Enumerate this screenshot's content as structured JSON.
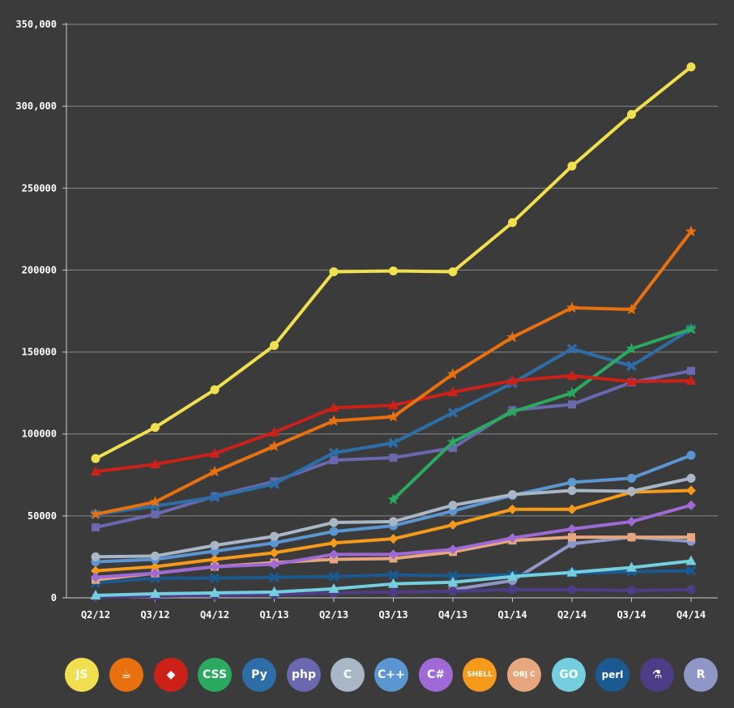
{
  "chart_data": {
    "type": "line",
    "title": "",
    "xlabel": "",
    "ylabel": "",
    "ylim": [
      0,
      350000
    ],
    "yticks": [
      0,
      50000,
      100000,
      150000,
      200000,
      250000,
      300000,
      350000
    ],
    "ytick_labels": [
      "0",
      "50000",
      "100000",
      "150000",
      "200000",
      "250000",
      "300,000",
      "350,000"
    ],
    "categories": [
      "Q2/12",
      "Q3/12",
      "Q4/12",
      "Q1/13",
      "Q2/13",
      "Q3/13",
      "Q4/13",
      "Q1/14",
      "Q2/14",
      "Q3/14",
      "Q4/14"
    ],
    "grid": true,
    "legend": "bottom",
    "series": [
      {
        "name": "JavaScript",
        "color": "#f0df4e",
        "marker": "circle",
        "values": [
          85000,
          104000,
          127000,
          154000,
          199000,
          199500,
          199000,
          229000,
          263500,
          295000,
          324000
        ]
      },
      {
        "name": "Java",
        "color": "#e8700f",
        "marker": "star",
        "values": [
          51000,
          58500,
          77000,
          92500,
          108000,
          110500,
          136500,
          159000,
          177000,
          176000,
          223500
        ]
      },
      {
        "name": "Ruby",
        "color": "#cc2119",
        "marker": "triangle",
        "values": [
          77000,
          81500,
          88000,
          101000,
          116000,
          117500,
          125500,
          132500,
          135500,
          132000,
          132500
        ]
      },
      {
        "name": "CSS",
        "color": "#2aaa5e",
        "marker": "star",
        "values": [
          null,
          null,
          null,
          null,
          null,
          60000,
          95000,
          113500,
          125000,
          152000,
          164000
        ]
      },
      {
        "name": "Python",
        "color": "#2e6ea8",
        "marker": "x",
        "values": [
          51000,
          56000,
          61500,
          69500,
          88500,
          94500,
          113000,
          131000,
          152000,
          141500,
          164000
        ]
      },
      {
        "name": "PHP",
        "color": "#6a68ae",
        "marker": "square",
        "values": [
          43000,
          51000,
          62000,
          71000,
          84000,
          85500,
          91500,
          114500,
          118000,
          131500,
          138500
        ]
      },
      {
        "name": "C",
        "color": "#a9b6c6",
        "marker": "circle",
        "values": [
          25000,
          25500,
          32000,
          37500,
          46000,
          46500,
          56500,
          63000,
          65500,
          65000,
          73000
        ]
      },
      {
        "name": "C++",
        "color": "#5b96d0",
        "marker": "circle",
        "values": [
          22000,
          23500,
          28500,
          33500,
          40500,
          44000,
          53000,
          62500,
          70500,
          73000,
          87000
        ]
      },
      {
        "name": "C#",
        "color": "#a06ad6",
        "marker": "diamond",
        "values": [
          12500,
          15000,
          19000,
          20500,
          26500,
          26500,
          29500,
          36500,
          42000,
          46500,
          56500
        ]
      },
      {
        "name": "Shell",
        "color": "#f59a1a",
        "marker": "diamond",
        "values": [
          16500,
          19000,
          23500,
          27500,
          33500,
          36000,
          44500,
          54000,
          54000,
          64500,
          65500
        ]
      },
      {
        "name": "Objective-C",
        "color": "#e6a67e",
        "marker": "square",
        "values": [
          11000,
          15000,
          19000,
          21500,
          23500,
          24000,
          28000,
          35000,
          37000,
          37000,
          37000
        ]
      },
      {
        "name": "Go",
        "color": "#74cede",
        "marker": "triangle",
        "values": [
          1500,
          2500,
          3000,
          3500,
          5500,
          8500,
          9500,
          13000,
          15500,
          18500,
          22500
        ]
      },
      {
        "name": "Perl",
        "color": "#1b5a90",
        "marker": "x",
        "values": [
          9000,
          12000,
          12000,
          12500,
          13000,
          14000,
          13500,
          14000,
          15000,
          16000,
          16500
        ]
      },
      {
        "name": "Scala",
        "color": "#4f3c86",
        "marker": "circle",
        "values": [
          500,
          1000,
          1500,
          2000,
          3000,
          3500,
          4000,
          5000,
          5000,
          4500,
          5000
        ]
      },
      {
        "name": "R",
        "color": "#8f97c7",
        "marker": "circle",
        "values": [
          null,
          null,
          null,
          null,
          null,
          null,
          5000,
          10500,
          33000,
          37000,
          34500
        ]
      }
    ]
  },
  "legend": {
    "items": [
      {
        "label": "JS",
        "icon": "js-icon",
        "color": "#f0df4e",
        "text_color": "#ffffff"
      },
      {
        "label": "☕",
        "icon": "java-icon",
        "color": "#e8700f",
        "text_color": "#ffffff"
      },
      {
        "label": "◆",
        "icon": "ruby-icon",
        "color": "#cc2119",
        "text_color": "#ffffff"
      },
      {
        "label": "CSS",
        "icon": "css-icon",
        "color": "#2aaa5e",
        "text_color": "#ffffff"
      },
      {
        "label": "Py",
        "icon": "python-icon",
        "color": "#2e6ea8",
        "text_color": "#ffffff"
      },
      {
        "label": "php",
        "icon": "php-icon",
        "color": "#6a68ae",
        "text_color": "#ffffff"
      },
      {
        "label": "C",
        "icon": "c-icon",
        "color": "#a9b6c6",
        "text_color": "#ffffff"
      },
      {
        "label": "C++",
        "icon": "cpp-icon",
        "color": "#5b96d0",
        "text_color": "#ffffff"
      },
      {
        "label": "C#",
        "icon": "csharp-icon",
        "color": "#a06ad6",
        "text_color": "#ffffff"
      },
      {
        "label": "SHELL",
        "icon": "shell-icon",
        "color": "#f59a1a",
        "text_color": "#ffffff"
      },
      {
        "label": "OBJ C",
        "icon": "objc-icon",
        "color": "#e6a67e",
        "text_color": "#ffffff"
      },
      {
        "label": "GO",
        "icon": "go-icon",
        "color": "#74cede",
        "text_color": "#ffffff"
      },
      {
        "label": "perl",
        "icon": "perl-icon",
        "color": "#1b5a90",
        "text_color": "#ffffff"
      },
      {
        "label": "⚗",
        "icon": "scala-icon",
        "color": "#4f3c86",
        "text_color": "#ffffff"
      },
      {
        "label": "R",
        "icon": "r-icon",
        "color": "#8f97c7",
        "text_color": "#ffffff"
      }
    ]
  }
}
